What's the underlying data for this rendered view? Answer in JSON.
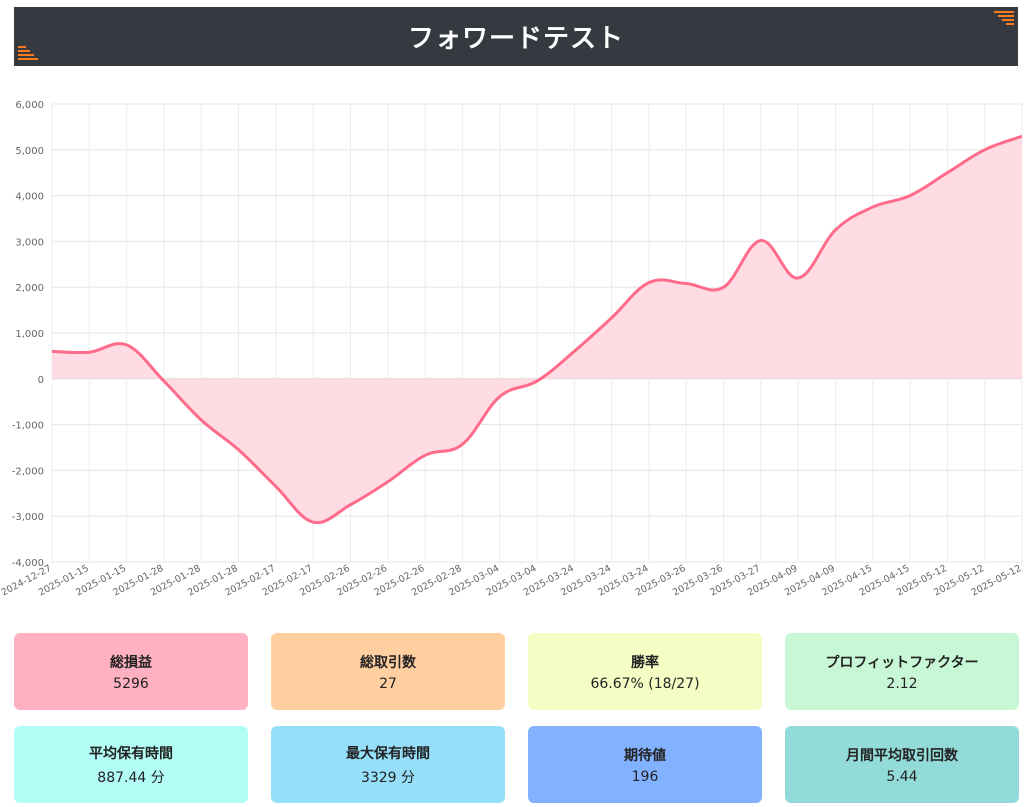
{
  "header": {
    "title": "フォワードテスト"
  },
  "chart_data": {
    "type": "area",
    "title": "",
    "xlabel": "",
    "ylabel": "",
    "ylim": [
      -4000,
      6000
    ],
    "yticks": [
      6000,
      5000,
      4000,
      3000,
      2000,
      1000,
      0,
      -1000,
      -2000,
      -3000,
      -4000
    ],
    "ytick_labels": [
      "6,000",
      "5,000",
      "4,000",
      "3,000",
      "2,000",
      "1,000",
      "0",
      "-1,000",
      "-2,000",
      "-3,000",
      "-4,000"
    ],
    "grid": true,
    "legend": "none",
    "line_color": "#ff6b8a",
    "fill_color": "#ffdbe3",
    "categories": [
      "2024-12-27",
      "2025-01-15",
      "2025-01-15",
      "2025-01-28",
      "2025-01-28",
      "2025-01-28",
      "2025-02-17",
      "2025-02-17",
      "2025-02-26",
      "2025-02-26",
      "2025-02-26",
      "2025-02-28",
      "2025-03-04",
      "2025-03-04",
      "2025-03-24",
      "2025-03-24",
      "2025-03-24",
      "2025-03-26",
      "2025-03-26",
      "2025-03-27",
      "2025-04-09",
      "2025-04-09",
      "2025-04-15",
      "2025-04-15",
      "2025-05-12",
      "2025-05-12",
      "2025-05-12"
    ],
    "values": [
      600,
      580,
      740,
      -50,
      -900,
      -1550,
      -2350,
      -3130,
      -2750,
      -2250,
      -1670,
      -1430,
      -390,
      -50,
      600,
      1330,
      2100,
      2080,
      2000,
      3020,
      2200,
      3250,
      3750,
      4000,
      4500,
      5000,
      5296
    ]
  },
  "stats": [
    {
      "label": "総損益",
      "value": "5296",
      "color": "#ffb1c1"
    },
    {
      "label": "総取引数",
      "value": "27",
      "color": "#ffcf9f"
    },
    {
      "label": "勝率",
      "value": "66.67% (18/27)",
      "color": "#f5fcc4"
    },
    {
      "label": "プロフィットファクター",
      "value": "2.12",
      "color": "#c8f7d6"
    },
    {
      "label": "平均保有時間",
      "value": "887.44 分",
      "color": "#b2fef7"
    },
    {
      "label": "最大保有時間",
      "value": "3329 分",
      "color": "#95dffb"
    },
    {
      "label": "期待値",
      "value": "196",
      "color": "#82b1ff"
    },
    {
      "label": "月間平均取引回数",
      "value": "5.44",
      "color": "#93dbd8"
    }
  ]
}
